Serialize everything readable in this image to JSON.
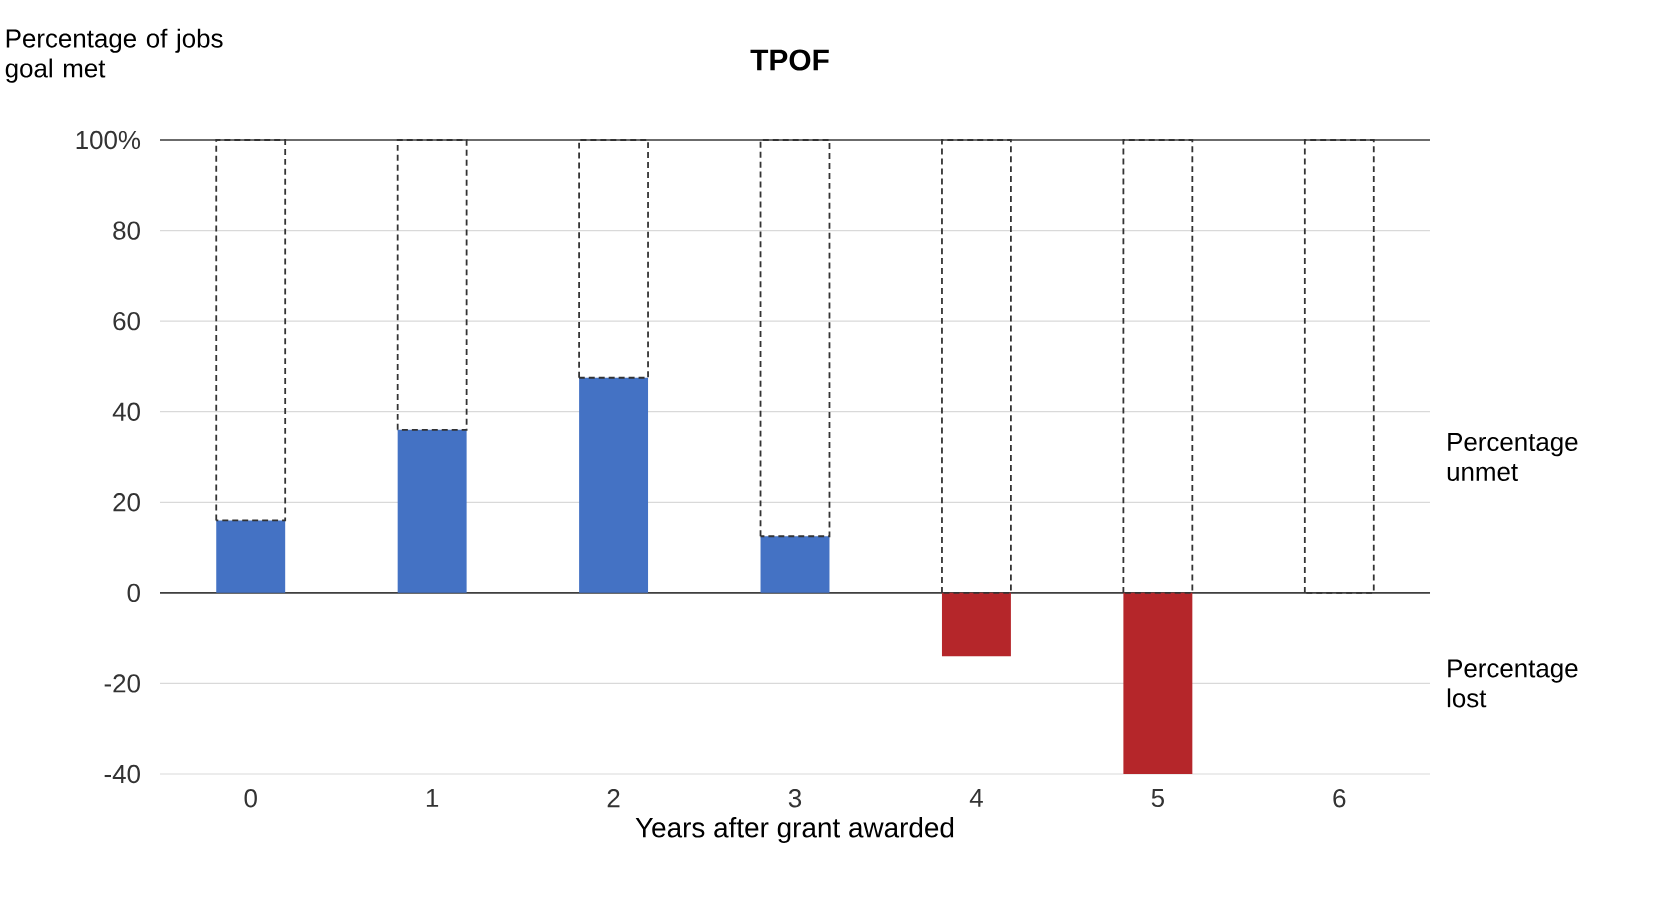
{
  "chart_data": {
    "type": "bar",
    "title": "TPOF",
    "xlabel": "Years after grant awarded",
    "ylabel": "Percentage of jobs goal met",
    "categories": [
      "0",
      "1",
      "2",
      "3",
      "4",
      "5",
      "6"
    ],
    "stacked": true,
    "series": [
      {
        "values": [
          16,
          36,
          47.5,
          12.5,
          -14,
          -40,
          0
        ],
        "colors": [
          "#4472c4",
          "#4472c4",
          "#4472c4",
          "#4472c4",
          "#b5262a",
          "#b5262a",
          "#4472c4"
        ]
      },
      {
        "values": [
          84,
          64,
          52.5,
          87.5,
          100,
          100,
          100
        ],
        "color": "#333333",
        "line_style": "dashed"
      }
    ],
    "ylim": [
      -40,
      100
    ],
    "yticks": [
      -40,
      -20,
      0,
      20,
      40,
      60,
      80,
      {
        "value": 100,
        "label": "100%"
      }
    ],
    "grid": "y",
    "annotations": [
      "Percentage unmet",
      "Percentage lost"
    ]
  }
}
